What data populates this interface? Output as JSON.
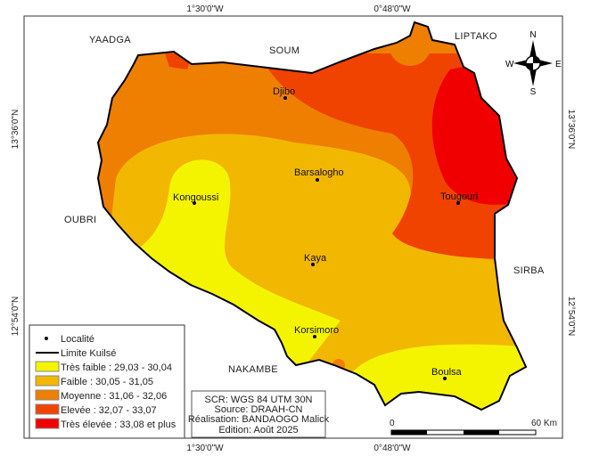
{
  "coordinates": {
    "top": [
      "1°30'0\"W",
      "0°48'0\"W"
    ],
    "bottom": [
      "1°30'0\"W",
      "0°48'0\"W"
    ],
    "left": [
      "13°36'0\"N",
      "12°54'0\"N"
    ],
    "right": [
      "13°36'0\"N",
      "12°54'0\"N"
    ]
  },
  "neighbors": [
    "YAADGA",
    "SOUM",
    "LIPTAKO",
    "OUBRI",
    "SIRBA",
    "NAKAMBE"
  ],
  "localities": [
    "Djibo",
    "Barsalogho",
    "Kongoussi",
    "Tougouri",
    "Kaya",
    "Korsimoro",
    "Boulsa"
  ],
  "legend": {
    "locality": "Localité",
    "boundary": "Limite Kuilsé",
    "classes": [
      {
        "label": "Très faible : 29,03 - 30,04",
        "color": "#f4f400"
      },
      {
        "label": "Faible : 30,05 - 31,05",
        "color": "#f2b700"
      },
      {
        "label": "Moyenne : 31,06 - 32,06",
        "color": "#ee7f00"
      },
      {
        "label": "Elevée : 32,07 - 33,07",
        "color": "#f04300"
      },
      {
        "label": "Très élevée : 33,08 et plus",
        "color": "#f00000"
      }
    ]
  },
  "credits": [
    "SCR: WGS 84 UTM 30N",
    "Source: DRAAH-CN",
    "Réalisation: BANDAOGO Malick",
    "Edition: Août 2025"
  ],
  "scale": {
    "start": "0",
    "end": "60 Km"
  },
  "north_arrow": {
    "n": "N",
    "s": "S",
    "e": "E",
    "w": "W"
  }
}
